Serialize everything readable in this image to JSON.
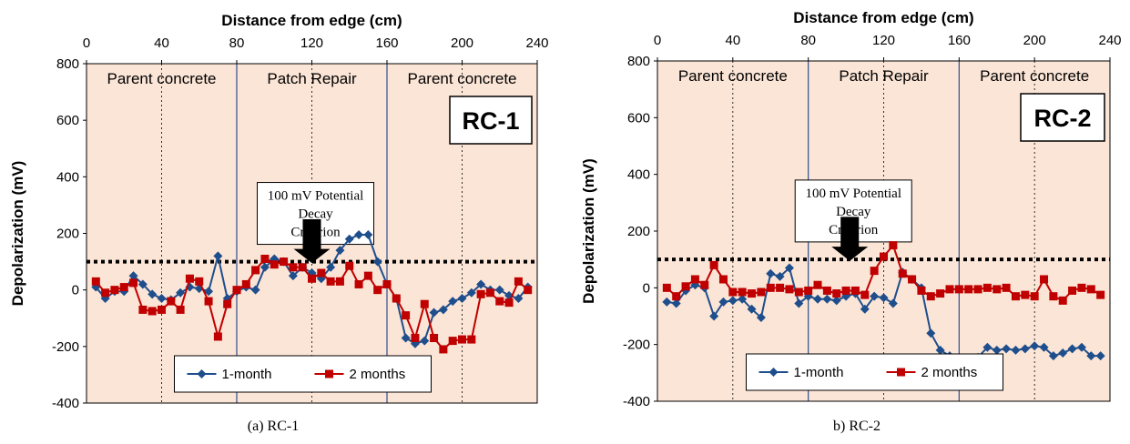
{
  "colors": {
    "plot_background": "#fbe5d6",
    "series_1": "#1f4e8c",
    "series_2": "#c00000",
    "divider": "#2f4f8f",
    "grid": "#000000"
  },
  "chart_data": [
    {
      "type": "line",
      "panel": "RC-1",
      "title": "",
      "badge": "RC-1",
      "caption": "(a) RC-1",
      "xlabel": "Distance from edge (cm)",
      "ylabel": "Depolarization (mV)",
      "xlim": [
        0,
        240
      ],
      "ylim": [
        -400,
        800
      ],
      "xticks": [
        0,
        40,
        80,
        120,
        160,
        200,
        240
      ],
      "yticks": [
        -400,
        -200,
        0,
        200,
        400,
        600,
        800
      ],
      "x_axis_position": "top",
      "grid": {
        "vertical_dashed_at": [
          40,
          120,
          200
        ]
      },
      "regions": [
        {
          "label": "Parent concrete",
          "from": 0,
          "to": 80
        },
        {
          "label": "Patch Repair",
          "from": 80,
          "to": 160
        },
        {
          "label": "Parent concrete",
          "from": 160,
          "to": 240
        }
      ],
      "threshold_line": {
        "y": 100,
        "style": "dotted"
      },
      "annotation": {
        "lines": [
          "100 mV Potential",
          "Decay",
          "Criterion"
        ],
        "arrow_x": 120
      },
      "legend": {
        "placement": "bottom-center",
        "entries": [
          "1-month",
          "2 months"
        ]
      },
      "series": [
        {
          "name": "1-month",
          "marker": "diamond",
          "points": [
            [
              5,
              10
            ],
            [
              10,
              -30
            ],
            [
              15,
              -5
            ],
            [
              20,
              -5
            ],
            [
              25,
              50
            ],
            [
              30,
              20
            ],
            [
              35,
              -15
            ],
            [
              40,
              -30
            ],
            [
              45,
              -35
            ],
            [
              50,
              -10
            ],
            [
              55,
              10
            ],
            [
              60,
              5
            ],
            [
              65,
              -5
            ],
            [
              70,
              120
            ],
            [
              75,
              -30
            ],
            [
              80,
              -5
            ],
            [
              85,
              10
            ],
            [
              90,
              0
            ],
            [
              95,
              80
            ],
            [
              100,
              110
            ],
            [
              105,
              100
            ],
            [
              110,
              50
            ],
            [
              115,
              80
            ],
            [
              120,
              60
            ],
            [
              125,
              40
            ],
            [
              130,
              80
            ],
            [
              135,
              140
            ],
            [
              140,
              180
            ],
            [
              145,
              195
            ],
            [
              150,
              195
            ],
            [
              155,
              100
            ],
            [
              160,
              20
            ],
            [
              165,
              -30
            ],
            [
              170,
              -170
            ],
            [
              175,
              -190
            ],
            [
              180,
              -180
            ],
            [
              185,
              -80
            ],
            [
              190,
              -70
            ],
            [
              195,
              -40
            ],
            [
              200,
              -30
            ],
            [
              205,
              -10
            ],
            [
              210,
              20
            ],
            [
              215,
              0
            ],
            [
              220,
              0
            ],
            [
              225,
              -20
            ],
            [
              230,
              -30
            ],
            [
              235,
              10
            ]
          ]
        },
        {
          "name": "2 months",
          "marker": "square",
          "points": [
            [
              5,
              30
            ],
            [
              10,
              -10
            ],
            [
              15,
              0
            ],
            [
              20,
              10
            ],
            [
              25,
              25
            ],
            [
              30,
              -70
            ],
            [
              35,
              -75
            ],
            [
              40,
              -70
            ],
            [
              45,
              -40
            ],
            [
              50,
              -70
            ],
            [
              55,
              40
            ],
            [
              60,
              30
            ],
            [
              65,
              -40
            ],
            [
              70,
              -165
            ],
            [
              75,
              -50
            ],
            [
              80,
              0
            ],
            [
              85,
              20
            ],
            [
              90,
              70
            ],
            [
              95,
              110
            ],
            [
              100,
              90
            ],
            [
              105,
              100
            ],
            [
              110,
              80
            ],
            [
              115,
              80
            ],
            [
              120,
              40
            ],
            [
              125,
              60
            ],
            [
              130,
              30
            ],
            [
              135,
              30
            ],
            [
              140,
              85
            ],
            [
              145,
              20
            ],
            [
              150,
              50
            ],
            [
              155,
              0
            ],
            [
              160,
              20
            ],
            [
              165,
              -30
            ],
            [
              170,
              -90
            ],
            [
              175,
              -170
            ],
            [
              180,
              -50
            ],
            [
              185,
              -170
            ],
            [
              190,
              -210
            ],
            [
              195,
              -180
            ],
            [
              200,
              -175
            ],
            [
              205,
              -175
            ],
            [
              210,
              -15
            ],
            [
              215,
              -10
            ],
            [
              220,
              -40
            ],
            [
              225,
              -45
            ],
            [
              230,
              30
            ],
            [
              235,
              0
            ]
          ]
        }
      ]
    },
    {
      "type": "line",
      "panel": "RC-2",
      "title": "",
      "badge": "RC-2",
      "caption": "b) RC-2",
      "xlabel": "Distance from edge (cm)",
      "ylabel": "Depolarization (mV)",
      "xlim": [
        0,
        240
      ],
      "ylim": [
        -400,
        800
      ],
      "xticks": [
        0,
        40,
        80,
        120,
        160,
        200,
        240
      ],
      "yticks": [
        -400,
        -200,
        0,
        200,
        400,
        600,
        800
      ],
      "x_axis_position": "top",
      "grid": {
        "vertical_dashed_at": [
          40,
          120,
          200
        ]
      },
      "regions": [
        {
          "label": "Parent concrete",
          "from": 0,
          "to": 80
        },
        {
          "label": "Patch Repair",
          "from": 80,
          "to": 160
        },
        {
          "label": "Parent concrete",
          "from": 160,
          "to": 240
        }
      ],
      "threshold_line": {
        "y": 100,
        "style": "dotted"
      },
      "annotation": {
        "lines": [
          "100 mV Potential",
          "Decay",
          "Criterion"
        ],
        "arrow_x": 102
      },
      "legend": {
        "placement": "bottom-center",
        "entries": [
          "1-month",
          "2 months"
        ]
      },
      "series": [
        {
          "name": "1-month",
          "marker": "diamond",
          "points": [
            [
              5,
              -50
            ],
            [
              10,
              -55
            ],
            [
              15,
              -10
            ],
            [
              20,
              10
            ],
            [
              25,
              0
            ],
            [
              30,
              -100
            ],
            [
              35,
              -50
            ],
            [
              40,
              -45
            ],
            [
              45,
              -40
            ],
            [
              50,
              -75
            ],
            [
              55,
              -105
            ],
            [
              60,
              50
            ],
            [
              65,
              40
            ],
            [
              70,
              70
            ],
            [
              75,
              -55
            ],
            [
              80,
              -30
            ],
            [
              85,
              -40
            ],
            [
              90,
              -40
            ],
            [
              95,
              -45
            ],
            [
              100,
              -30
            ],
            [
              105,
              -20
            ],
            [
              110,
              -75
            ],
            [
              115,
              -30
            ],
            [
              120,
              -35
            ],
            [
              125,
              -55
            ],
            [
              130,
              55
            ],
            [
              135,
              30
            ],
            [
              140,
              0
            ],
            [
              145,
              -160
            ],
            [
              150,
              -220
            ],
            [
              155,
              -240
            ],
            [
              160,
              -250
            ],
            [
              165,
              -250
            ],
            [
              170,
              -245
            ],
            [
              175,
              -210
            ],
            [
              180,
              -220
            ],
            [
              185,
              -215
            ],
            [
              190,
              -220
            ],
            [
              195,
              -215
            ],
            [
              200,
              -205
            ],
            [
              205,
              -210
            ],
            [
              210,
              -240
            ],
            [
              215,
              -230
            ],
            [
              220,
              -215
            ],
            [
              225,
              -210
            ],
            [
              230,
              -240
            ],
            [
              235,
              -240
            ]
          ]
        },
        {
          "name": "2 months",
          "marker": "square",
          "points": [
            [
              5,
              0
            ],
            [
              10,
              -30
            ],
            [
              15,
              5
            ],
            [
              20,
              30
            ],
            [
              25,
              10
            ],
            [
              30,
              80
            ],
            [
              35,
              30
            ],
            [
              40,
              -15
            ],
            [
              45,
              -15
            ],
            [
              50,
              -20
            ],
            [
              55,
              -15
            ],
            [
              60,
              0
            ],
            [
              65,
              0
            ],
            [
              70,
              -5
            ],
            [
              75,
              -15
            ],
            [
              80,
              -10
            ],
            [
              85,
              10
            ],
            [
              90,
              -10
            ],
            [
              95,
              -20
            ],
            [
              100,
              -10
            ],
            [
              105,
              -10
            ],
            [
              110,
              -25
            ],
            [
              115,
              60
            ],
            [
              120,
              110
            ],
            [
              125,
              150
            ],
            [
              130,
              50
            ],
            [
              135,
              30
            ],
            [
              140,
              -10
            ],
            [
              145,
              -30
            ],
            [
              150,
              -20
            ],
            [
              155,
              -5
            ],
            [
              160,
              -5
            ],
            [
              165,
              -5
            ],
            [
              170,
              -5
            ],
            [
              175,
              0
            ],
            [
              180,
              -5
            ],
            [
              185,
              0
            ],
            [
              190,
              -30
            ],
            [
              195,
              -25
            ],
            [
              200,
              -30
            ],
            [
              205,
              30
            ],
            [
              210,
              -30
            ],
            [
              215,
              -45
            ],
            [
              220,
              -10
            ],
            [
              225,
              0
            ],
            [
              230,
              -5
            ],
            [
              235,
              -25
            ]
          ]
        }
      ]
    }
  ]
}
